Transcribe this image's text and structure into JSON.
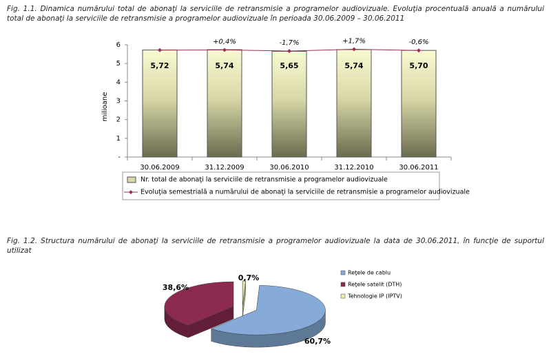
{
  "chart_data": [
    {
      "type": "bar",
      "title": "Fig. 1.1. Dinamica numărului total de abonaţi la serviciile de retransmisie a programelor audiovizuale. Evoluţia procentuală anuală a numărului total de abonaţi la serviciile de retransmisie a programelor audiovizuale în perioada 30.06.2009 – 30.06.2011",
      "y_label": "milioane",
      "categories": [
        "30.06.2009",
        "31.12.2009",
        "30.06.2010",
        "31.12.2010",
        "30.06.2011"
      ],
      "series": [
        {
          "name": "Nr. total de abonaţi la serviciile de retransmisie a programelor audiovizuale",
          "type": "bar",
          "color": "#d8d8a8",
          "values": [
            5.72,
            5.74,
            5.65,
            5.74,
            5.7
          ],
          "value_labels": [
            "5,72",
            "5,74",
            "5,65",
            "5,74",
            "5,70"
          ]
        },
        {
          "name": "Evoluţia semestrială a numărului de abonaţi la serviciile de retransmisie a programelor audiovizuale",
          "type": "line",
          "axis": "y2",
          "color": "#9b2d5e",
          "values": [
            0,
            0.4,
            -1.7,
            1.7,
            -0.6
          ],
          "value_labels": [
            null,
            "+0,4%",
            "-1,7%",
            "+1,7%",
            "-0,6%"
          ]
        }
      ],
      "ylim": [
        0,
        6
      ],
      "yticks": [
        {
          "value": 0,
          "label": "-"
        },
        1,
        2,
        3,
        4,
        5,
        6
      ],
      "y2lim": [
        -200,
        10
      ]
    },
    {
      "type": "pie",
      "title": "Fig. 1.2. Structura numărului de abonaţi la serviciile de retransmisie a programelor audiovizuale la data de 30.06.2011, în funcţie de suportul utilizat",
      "categories": [
        "Reţele de cablu",
        "Reţele satelit (DTH)",
        "Tehnologie IP (IPTV)"
      ],
      "values": [
        60.7,
        38.6,
        0.7
      ],
      "value_labels": [
        "60,7%",
        "38,6%",
        "0,7%"
      ],
      "colors": [
        "#86abd9",
        "#8c2a52",
        "#ececa8"
      ]
    }
  ]
}
